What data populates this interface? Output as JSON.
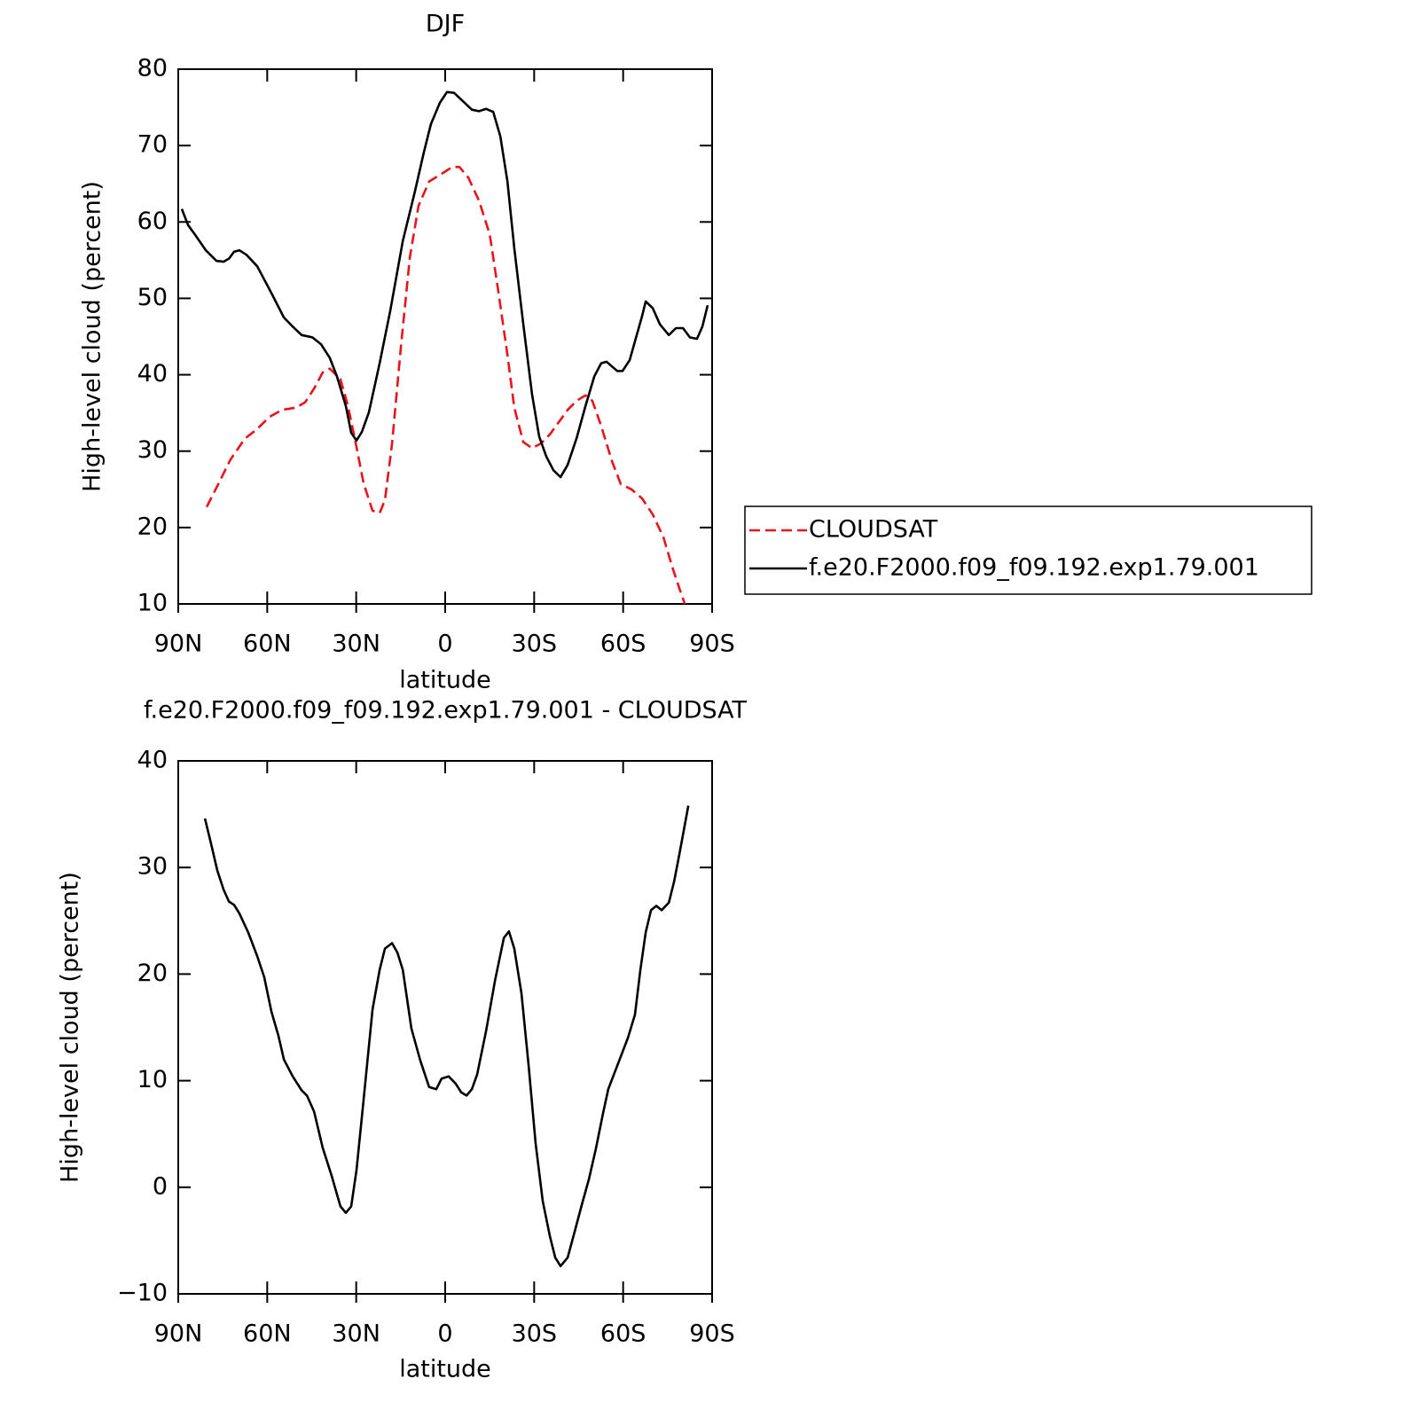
{
  "chart_data": [
    {
      "type": "line",
      "title": "DJF",
      "xlabel": "latitude",
      "ylabel": "High-level cloud (percent)",
      "xlim": [
        90,
        -90
      ],
      "xticks": [
        {
          "value": 90,
          "label": "90N"
        },
        {
          "value": 60,
          "label": "60N"
        },
        {
          "value": 30,
          "label": "30N"
        },
        0,
        {
          "value": -30,
          "label": "30S"
        },
        {
          "value": -60,
          "label": "60S"
        },
        {
          "value": -90,
          "label": "90S"
        }
      ],
      "ylim": [
        10,
        80
      ],
      "yticks": [
        10,
        20,
        30,
        40,
        50,
        60,
        70,
        80
      ],
      "legend": "right",
      "series": [
        {
          "name": "CLOUDSAT",
          "color": "#e8141c",
          "dash": true,
          "x": [
            80.4,
            76.5,
            72.4,
            67.6,
            63.4,
            59.2,
            55.0,
            50.2,
            47.2,
            44.2,
            41.3,
            38.9,
            35.3,
            32.9,
            30.5,
            27.5,
            24.5,
            22.1,
            20.3,
            17.9,
            14.9,
            11.9,
            9.0,
            5.4,
            1.2,
            -2.4,
            -4.8,
            -7.8,
            -11.4,
            -15.0,
            -18.0,
            -21.0,
            -23.3,
            -26.3,
            -29.3,
            -32.3,
            -35.3,
            -38.3,
            -41.3,
            -44.3,
            -47.3,
            -49.6,
            -52.6,
            -56.2,
            -59.2,
            -62.8,
            -66.4,
            -70.0,
            -73.6,
            -76.6,
            -79.0,
            -80.8
          ],
          "values": [
            22.7,
            25.7,
            28.9,
            31.6,
            32.9,
            34.5,
            35.4,
            35.7,
            36.4,
            38.2,
            40.3,
            40.8,
            39.4,
            36.1,
            31.7,
            25.8,
            22.2,
            21.9,
            23.6,
            31.0,
            43.8,
            55.4,
            62.1,
            65.3,
            66.3,
            67.2,
            67.2,
            65.8,
            62.8,
            58.4,
            50.7,
            42.6,
            35.7,
            31.2,
            30.4,
            31.0,
            32.2,
            33.8,
            35.4,
            36.6,
            37.3,
            36.6,
            33.3,
            28.7,
            25.7,
            25.0,
            23.8,
            21.7,
            18.7,
            14.8,
            12.0,
            10.0
          ]
        },
        {
          "name": "f.e20.F2000.f09_f09.192.exp1.79.001",
          "color": "#000000",
          "dash": false,
          "x": [
            88.8,
            86.7,
            84.3,
            80.7,
            77.1,
            74.7,
            72.9,
            71.2,
            69.4,
            67.0,
            63.4,
            58.6,
            54.4,
            51.4,
            48.4,
            44.8,
            41.9,
            38.9,
            36.5,
            33.5,
            31.7,
            29.9,
            28.1,
            25.7,
            22.1,
            18.5,
            14.3,
            10.2,
            7.2,
            4.8,
            1.8,
            -0.6,
            -3.0,
            -6.0,
            -9.0,
            -11.4,
            -13.8,
            -16.2,
            -18.6,
            -21.0,
            -23.3,
            -26.3,
            -29.3,
            -31.7,
            -34.1,
            -36.5,
            -38.9,
            -41.3,
            -44.3,
            -47.3,
            -50.3,
            -52.6,
            -54.4,
            -58.0,
            -59.8,
            -62.2,
            -66.4,
            -67.6,
            -70.0,
            -72.4,
            -75.4,
            -77.8,
            -80.2,
            -82.5,
            -84.9,
            -86.7,
            -88.5
          ],
          "values": [
            61.7,
            59.6,
            58.3,
            56.3,
            54.9,
            54.8,
            55.2,
            56.1,
            56.3,
            55.7,
            54.2,
            50.7,
            47.5,
            46.3,
            45.2,
            44.9,
            44.0,
            42.2,
            39.8,
            35.9,
            32.4,
            31.4,
            32.5,
            35.1,
            41.5,
            48.4,
            57.5,
            64.0,
            69.1,
            72.8,
            75.6,
            77.0,
            76.9,
            75.8,
            74.7,
            74.5,
            74.8,
            74.4,
            71.2,
            65.3,
            56.6,
            46.7,
            37.4,
            31.9,
            29.3,
            27.5,
            26.6,
            28.2,
            31.7,
            35.9,
            39.8,
            41.5,
            41.7,
            40.5,
            40.5,
            41.9,
            47.7,
            49.6,
            48.7,
            46.6,
            45.2,
            46.1,
            46.1,
            44.9,
            44.7,
            46.3,
            49.1
          ]
        }
      ]
    },
    {
      "type": "line",
      "title": "f.e20.F2000.f09_f09.192.exp1.79.001 - CLOUDSAT",
      "xlabel": "latitude",
      "ylabel": "High-level cloud (percent)",
      "xlim": [
        90,
        -90
      ],
      "xticks": [
        {
          "value": 90,
          "label": "90N"
        },
        {
          "value": 60,
          "label": "60N"
        },
        {
          "value": 30,
          "label": "30N"
        },
        0,
        {
          "value": -30,
          "label": "30S"
        },
        {
          "value": -60,
          "label": "60S"
        },
        {
          "value": -90,
          "label": "90S"
        }
      ],
      "ylim": [
        -10,
        40
      ],
      "yticks": [
        {
          "value": -10,
          "label": "−10"
        },
        0,
        10,
        20,
        30,
        40
      ],
      "series": [
        {
          "color": "#000000",
          "dash": false,
          "x": [
            81.0,
            78.9,
            76.8,
            74.7,
            72.9,
            71.2,
            69.4,
            66.4,
            63.4,
            61.0,
            58.6,
            56.2,
            54.4,
            51.4,
            48.4,
            46.6,
            44.2,
            41.3,
            38.3,
            35.3,
            33.5,
            31.7,
            29.9,
            27.5,
            24.5,
            22.1,
            20.3,
            17.9,
            16.1,
            14.3,
            11.4,
            8.4,
            5.4,
            3.0,
            1.2,
            -1.2,
            -3.6,
            -5.4,
            -7.2,
            -9.0,
            -10.8,
            -13.8,
            -16.8,
            -19.8,
            -21.5,
            -23.3,
            -25.7,
            -28.1,
            -30.5,
            -32.9,
            -35.3,
            -37.1,
            -38.9,
            -41.3,
            -43.7,
            -46.1,
            -48.4,
            -50.8,
            -53.2,
            -55.0,
            -58.0,
            -61.6,
            -64.0,
            -65.8,
            -67.6,
            -69.4,
            -71.2,
            -73.0,
            -75.4,
            -77.2,
            -79.0,
            -80.8,
            -82.0
          ],
          "values": [
            34.6,
            32.2,
            29.7,
            27.9,
            26.8,
            26.5,
            25.7,
            23.9,
            21.7,
            19.7,
            16.5,
            14.2,
            12.0,
            10.4,
            9.1,
            8.6,
            7.1,
            3.7,
            1.1,
            -1.8,
            -2.4,
            -1.8,
            1.6,
            8.2,
            16.7,
            20.4,
            22.4,
            22.9,
            22.0,
            20.4,
            14.9,
            11.9,
            9.4,
            9.2,
            10.2,
            10.4,
            9.7,
            8.9,
            8.6,
            9.2,
            10.6,
            14.7,
            19.4,
            23.4,
            24.0,
            22.4,
            18.2,
            11.5,
            4.1,
            -1.3,
            -4.6,
            -6.6,
            -7.4,
            -6.6,
            -4.1,
            -1.6,
            0.7,
            3.6,
            6.9,
            9.2,
            11.4,
            14.0,
            16.2,
            20.4,
            23.9,
            26.0,
            26.4,
            26.0,
            26.7,
            28.7,
            31.3,
            34.0,
            35.8
          ]
        }
      ]
    }
  ]
}
